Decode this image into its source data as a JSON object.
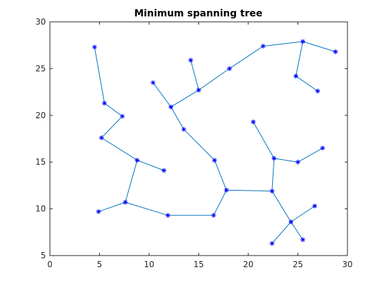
{
  "chart_data": {
    "type": "line",
    "title": "Minimum spanning tree",
    "xlabel": "",
    "ylabel": "",
    "xlim": [
      0,
      30
    ],
    "ylim": [
      5,
      30
    ],
    "xticks": [
      0,
      5,
      10,
      15,
      20,
      25,
      30
    ],
    "yticks": [
      5,
      10,
      15,
      20,
      25,
      30
    ],
    "grid": false,
    "legend": "none",
    "marker": "asterisk",
    "colors": {
      "marker": "#0000ff",
      "edge": "#0072bd",
      "axis": "#262626",
      "background": "#ffffff"
    },
    "nodes": [
      {
        "id": 1,
        "x": 4.5,
        "y": 27.3
      },
      {
        "id": 2,
        "x": 5.5,
        "y": 21.3
      },
      {
        "id": 3,
        "x": 7.3,
        "y": 19.9
      },
      {
        "id": 4,
        "x": 5.2,
        "y": 17.6
      },
      {
        "id": 5,
        "x": 8.8,
        "y": 15.2
      },
      {
        "id": 6,
        "x": 11.5,
        "y": 14.1
      },
      {
        "id": 7,
        "x": 7.6,
        "y": 10.7
      },
      {
        "id": 8,
        "x": 4.9,
        "y": 9.7
      },
      {
        "id": 9,
        "x": 11.9,
        "y": 9.3
      },
      {
        "id": 10,
        "x": 16.5,
        "y": 9.3
      },
      {
        "id": 11,
        "x": 17.8,
        "y": 12.0
      },
      {
        "id": 12,
        "x": 16.6,
        "y": 15.2
      },
      {
        "id": 13,
        "x": 13.5,
        "y": 18.5
      },
      {
        "id": 14,
        "x": 12.2,
        "y": 20.9
      },
      {
        "id": 15,
        "x": 10.4,
        "y": 23.5
      },
      {
        "id": 16,
        "x": 15.0,
        "y": 22.7
      },
      {
        "id": 17,
        "x": 14.2,
        "y": 25.9
      },
      {
        "id": 18,
        "x": 18.1,
        "y": 25.0
      },
      {
        "id": 19,
        "x": 21.5,
        "y": 27.4
      },
      {
        "id": 20,
        "x": 25.5,
        "y": 27.9
      },
      {
        "id": 21,
        "x": 28.8,
        "y": 26.8
      },
      {
        "id": 22,
        "x": 24.8,
        "y": 24.2
      },
      {
        "id": 23,
        "x": 27.0,
        "y": 22.6
      },
      {
        "id": 24,
        "x": 20.5,
        "y": 19.3
      },
      {
        "id": 25,
        "x": 22.6,
        "y": 15.4
      },
      {
        "id": 26,
        "x": 25.0,
        "y": 15.0
      },
      {
        "id": 27,
        "x": 27.5,
        "y": 16.5
      },
      {
        "id": 28,
        "x": 22.4,
        "y": 11.9
      },
      {
        "id": 29,
        "x": 24.3,
        "y": 8.6
      },
      {
        "id": 30,
        "x": 26.7,
        "y": 10.3
      },
      {
        "id": 31,
        "x": 22.4,
        "y": 6.3
      },
      {
        "id": 32,
        "x": 25.5,
        "y": 6.7
      }
    ],
    "edges": [
      [
        1,
        2
      ],
      [
        2,
        3
      ],
      [
        3,
        4
      ],
      [
        4,
        5
      ],
      [
        5,
        6
      ],
      [
        5,
        7
      ],
      [
        7,
        8
      ],
      [
        7,
        9
      ],
      [
        9,
        10
      ],
      [
        10,
        11
      ],
      [
        11,
        12
      ],
      [
        12,
        13
      ],
      [
        13,
        14
      ],
      [
        14,
        15
      ],
      [
        14,
        16
      ],
      [
        16,
        17
      ],
      [
        16,
        18
      ],
      [
        18,
        19
      ],
      [
        19,
        20
      ],
      [
        20,
        21
      ],
      [
        20,
        22
      ],
      [
        22,
        23
      ],
      [
        11,
        28
      ],
      [
        28,
        25
      ],
      [
        25,
        24
      ],
      [
        25,
        26
      ],
      [
        26,
        27
      ],
      [
        28,
        29
      ],
      [
        29,
        30
      ],
      [
        29,
        31
      ],
      [
        29,
        32
      ]
    ]
  }
}
